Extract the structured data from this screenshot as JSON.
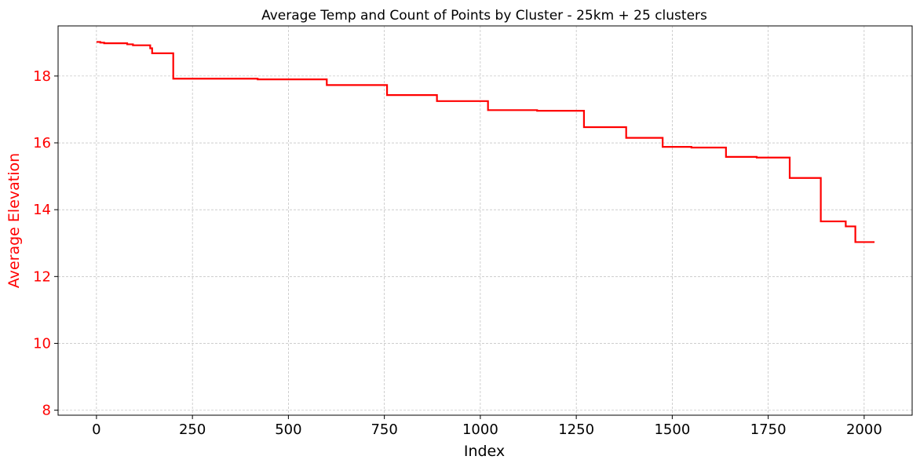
{
  "chart_data": {
    "type": "line",
    "title": "Average Temp and Count of Points by Cluster - 25km + 25 clusters",
    "xlabel": "Index",
    "ylabel": "Average Elevation",
    "xlim": [
      -100,
      2125
    ],
    "ylim": [
      7.85,
      19.5
    ],
    "x_ticks": [
      0,
      250,
      500,
      750,
      1000,
      1250,
      1500,
      1750,
      2000
    ],
    "x_tick_labels": [
      "0",
      "250",
      "500",
      "750",
      "1000",
      "1250",
      "1500",
      "1750",
      "2000"
    ],
    "y_ticks": [
      8,
      10,
      12,
      14,
      16,
      18
    ],
    "y_tick_labels": [
      "8",
      "10",
      "12",
      "14",
      "16",
      "18"
    ],
    "grid": true,
    "colors": {
      "series": "#ff0000",
      "ylabel": "#ff0000",
      "yticks": "#ff0000"
    },
    "series": [
      {
        "x": [
          0,
          10,
          10,
          20,
          20,
          80,
          80,
          95,
          95,
          140,
          140,
          145,
          145,
          200,
          200,
          420,
          420,
          600,
          600,
          757,
          757,
          887,
          887,
          1020,
          1020,
          1148,
          1148,
          1270,
          1270,
          1380,
          1380,
          1475,
          1475,
          1550,
          1550,
          1640,
          1640,
          1720,
          1720,
          1806,
          1806,
          1887,
          1887,
          1952,
          1952,
          1977,
          1977,
          2027
        ],
        "y": [
          19.02,
          19.02,
          19.0,
          19.0,
          18.98,
          18.98,
          18.95,
          18.95,
          18.92,
          18.92,
          18.83,
          18.83,
          18.68,
          18.68,
          17.92,
          17.92,
          17.9,
          17.9,
          17.73,
          17.73,
          17.43,
          17.43,
          17.25,
          17.25,
          16.98,
          16.98,
          16.96,
          16.96,
          16.47,
          16.47,
          16.15,
          16.15,
          15.88,
          15.88,
          15.86,
          15.86,
          15.58,
          15.58,
          15.56,
          15.56,
          14.95,
          14.95,
          13.65,
          13.65,
          13.5,
          13.5,
          13.03,
          13.03
        ]
      }
    ]
  }
}
